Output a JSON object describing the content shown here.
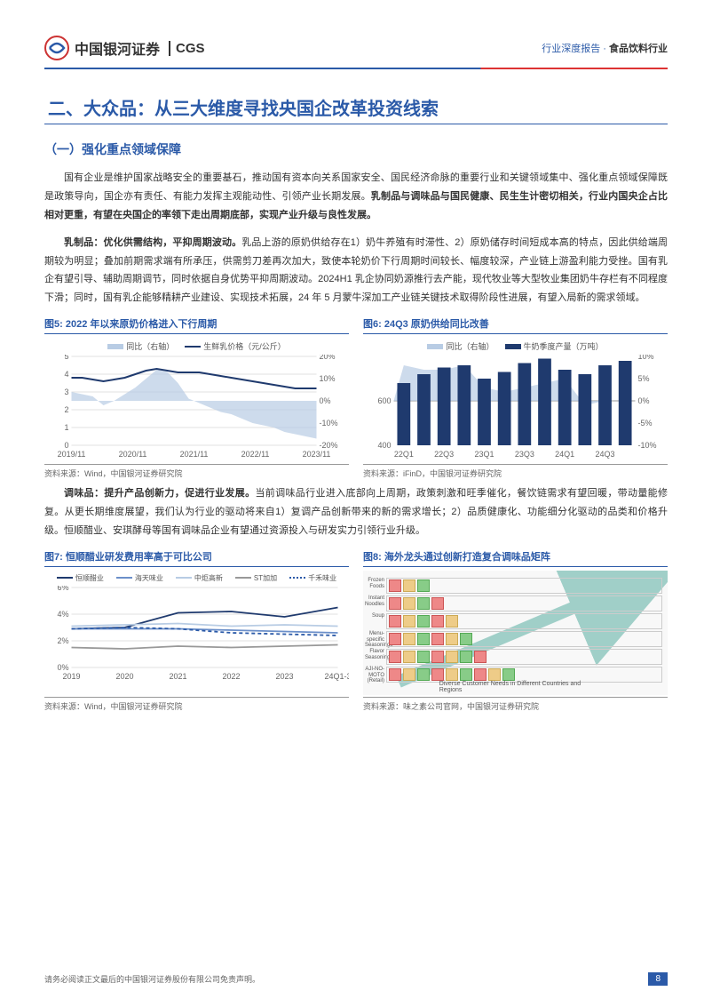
{
  "header": {
    "company_cn": "中国银河证券",
    "company_en": "CGS",
    "report_type": "行业深度报告",
    "sector": "食品饮料行业"
  },
  "h2": "二、大众品：从三大维度寻找央国企改革投资线索",
  "h3_1": "（一）强化重点领域保障",
  "para1a": "国有企业是维护国家战略安全的重要基石，推动国有资本向关系国家安全、国民经济命脉的重要行业和关键领域集中、强化重点领域保障既是政策导向，国企亦有责任、有能力发挥主观能动性、引领产业长期发展。",
  "para1b": "乳制品与调味品与国民健康、民生生计密切相关，行业内国央企占比相对更重，有望在央国企的率领下走出周期底部，实现产业升级与良性发展。",
  "para2a": "乳制品：优化供需结构，平抑周期波动。",
  "para2b": "乳品上游的原奶供给存在1）奶牛养殖有时滞性、2）原奶储存时间短成本高的特点，因此供给端周期较为明显；叠加前期需求端有所承压，供需剪刀差再次加大，致使本轮奶价下行周期时间较长、幅度较深，产业链上游盈利能力受挫。国有乳企有望引导、辅助周期调节，同时依据自身优势平抑周期波动。2024H1 乳企协同奶源推行去产能，现代牧业等大型牧业集团奶牛存栏有不同程度下滑；同时，国有乳企能够精耕产业建设、实现技术拓展，24 年 5 月蒙牛深加工产业链关键技术取得阶段性进展，有望入局新的需求领域。",
  "para3a": "调味品：提升产品创新力，促进行业发展。",
  "para3b": "当前调味品行业进入底部向上周期，政策刺激和旺季催化，餐饮链需求有望回暖，带动量能修复。从更长期维度展望，我们认为行业的驱动将来自1）复调产品创新带来的新的需求增长；2）品质健康化、功能细分化驱动的品类和价格升级。恒顺醋业、安琪酵母等国有调味品企业有望通过资源投入与研发实力引领行业升级。",
  "fig5": {
    "title": "图5: 2022 年以来原奶价格进入下行周期",
    "type": "line+area",
    "legend": {
      "area": "同比（右轴）",
      "line": "生鲜乳价格（元/公斤）"
    },
    "x_labels": [
      "2019/11",
      "2020/11",
      "2021/11",
      "2022/11",
      "2023/11"
    ],
    "y_left": {
      "min": 0,
      "max": 5,
      "step": 1
    },
    "y_right": {
      "min": -20,
      "max": 20,
      "step": 10,
      "fmt": "%"
    },
    "line_color": "#1f3a6e",
    "area_color": "#b8cce4",
    "grid_color": "#e0e0e0",
    "bg": "#ffffff",
    "price": [
      3.8,
      3.8,
      3.7,
      3.6,
      3.7,
      3.8,
      4.0,
      4.2,
      4.3,
      4.2,
      4.1,
      4.1,
      4.1,
      4.0,
      3.9,
      3.8,
      3.7,
      3.6,
      3.5,
      3.4,
      3.3,
      3.2,
      3.2,
      3.2
    ],
    "yoy": [
      4,
      3,
      2,
      -2,
      0,
      3,
      6,
      10,
      14,
      13,
      8,
      1,
      -1,
      -3,
      -5,
      -6,
      -8,
      -10,
      -11,
      -12,
      -14,
      -15,
      -16,
      -17
    ],
    "source": "资料来源：Wind，中国银河证券研究院"
  },
  "fig6": {
    "title": "图6: 24Q3 原奶供给同比改善",
    "type": "bar+area",
    "legend": {
      "area": "同比（右轴）",
      "bar": "牛奶季度产量（万吨）"
    },
    "x_labels": [
      "22Q1",
      "22Q3",
      "23Q1",
      "23Q3",
      "24Q1",
      "24Q3"
    ],
    "y_left": {
      "min": 400,
      "max": 800,
      "step": 200,
      "show": [
        400,
        600
      ]
    },
    "y_right": {
      "min": -10,
      "max": 10,
      "step": 5,
      "fmt": "%"
    },
    "bar_color": "#1f3a6e",
    "area_color": "#b8cce4",
    "bg": "#ffffff",
    "bars": [
      680,
      720,
      750,
      760,
      700,
      730,
      770,
      790,
      740,
      720,
      760,
      780
    ],
    "yoy": [
      8,
      7,
      7,
      8,
      3,
      2,
      3,
      4,
      5,
      -1,
      0,
      0
    ],
    "source": "资料来源：iFinD，中国银河证券研究院"
  },
  "fig7": {
    "title": "图7: 恒顺醋业研发费用率高于可比公司",
    "type": "line",
    "x_labels": [
      "2019",
      "2020",
      "2021",
      "2022",
      "2023",
      "24Q1-3"
    ],
    "y": {
      "min": 0,
      "max": 6,
      "step": 2,
      "fmt": "%"
    },
    "series": [
      {
        "name": "恒顺醋业",
        "color": "#1f3a6e",
        "dash": "0",
        "vals": [
          2.9,
          3.0,
          4.1,
          4.2,
          3.8,
          4.5
        ]
      },
      {
        "name": "海天味业",
        "color": "#6b8fc9",
        "dash": "0",
        "vals": [
          2.9,
          2.9,
          2.9,
          2.8,
          2.7,
          2.6
        ]
      },
      {
        "name": "中炬高新",
        "color": "#b8cce4",
        "dash": "0",
        "vals": [
          3.1,
          3.2,
          3.3,
          3.1,
          3.2,
          3.1
        ]
      },
      {
        "name": "ST加加",
        "color": "#999999",
        "dash": "0",
        "vals": [
          1.5,
          1.4,
          1.6,
          1.5,
          1.6,
          1.7
        ]
      },
      {
        "name": "千禾味业",
        "color": "#2b5aa8",
        "dash": "4,3",
        "vals": [
          2.9,
          3.0,
          2.9,
          2.6,
          2.5,
          2.4
        ]
      }
    ],
    "bg": "#ffffff",
    "source": "资料来源：Wind，中国银河证券研究院"
  },
  "fig8": {
    "title": "图8: 海外龙头通过创新打造复合调味品矩阵",
    "rows": [
      "Frozen Foods",
      "Instant Noodles",
      "Soup",
      "Menu-specific Seasonings",
      "Flavor Seasonings",
      "AJI-NO-MOTO (Retail)"
    ],
    "x_axis": "Diverse Customer Needs in Different Countries and Regions",
    "y_axis": "Product Spread",
    "arrow_color": "#4aa89a",
    "source": "资料来源：味之素公司官网，中国银河证券研究院"
  },
  "footer": {
    "disclaimer": "请务必阅读正文最后的中国银河证券股份有限公司免责声明。",
    "page": "8"
  }
}
